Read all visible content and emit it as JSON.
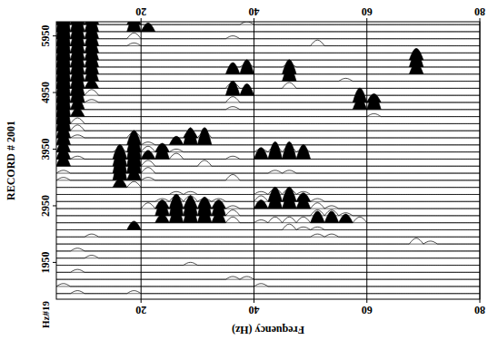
{
  "chart_data": {
    "type": "wiggle",
    "x_label": "Frequency (Hz)",
    "y_label": "RECORD # 2001",
    "annotations": [
      "Hz#19"
    ],
    "color": "#000000",
    "grid": true,
    "xlim": [
      5,
      80
    ],
    "ylim": [
      1300,
      6200
    ],
    "xticks": [
      20,
      40,
      60,
      80
    ],
    "yticks": [
      1950,
      2950,
      3950,
      4950,
      5950
    ],
    "x": [
      6.25,
      8.75,
      11.25,
      13.75,
      16.25,
      18.75,
      21.25,
      23.75,
      26.25,
      28.75,
      31.25,
      33.75,
      36.25,
      38.75,
      41.25,
      43.75,
      46.25,
      48.75,
      51.25,
      53.75,
      56.25,
      58.75,
      61.25,
      63.75,
      66.25,
      68.75,
      71.25,
      73.75,
      76.25,
      78.75
    ],
    "y": [
      1400,
      1525,
      1650,
      1775,
      1900,
      2025,
      2150,
      2275,
      2400,
      2525,
      2650,
      2775,
      2900,
      3025,
      3150,
      3275,
      3400,
      3525,
      3650,
      3775,
      3900,
      4025,
      4150,
      4275,
      4400,
      4525,
      4650,
      4775,
      4900,
      5025,
      5150,
      5275,
      5400,
      5525,
      5650,
      5775,
      5900,
      6025,
      6150
    ],
    "cells": [
      [
        0,
        1,
        0,
        0,
        0,
        1,
        0,
        0,
        0,
        0,
        0,
        0,
        0,
        0,
        0,
        0,
        0,
        0,
        0,
        0,
        0,
        0,
        0,
        0,
        0,
        0,
        0,
        0,
        0,
        0
      ],
      [
        1,
        0,
        0,
        0,
        0,
        0,
        0,
        0,
        0,
        0,
        0,
        0,
        0,
        0,
        1,
        0,
        0,
        0,
        0,
        0,
        0,
        0,
        0,
        0,
        0,
        0,
        0,
        0,
        0,
        0
      ],
      [
        0,
        0,
        0,
        0,
        0,
        0,
        0,
        0,
        0,
        0,
        0,
        0,
        1,
        1,
        0,
        0,
        0,
        0,
        0,
        0,
        0,
        0,
        0,
        0,
        0,
        0,
        0,
        0,
        0,
        0
      ],
      [
        0,
        1,
        0,
        0,
        0,
        0,
        0,
        0,
        0,
        0,
        0,
        0,
        0,
        0,
        0,
        0,
        0,
        0,
        0,
        0,
        0,
        0,
        0,
        0,
        0,
        0,
        0,
        0,
        0,
        0
      ],
      [
        0,
        0,
        0,
        0,
        0,
        0,
        0,
        0,
        0,
        1,
        0,
        0,
        0,
        0,
        0,
        0,
        0,
        0,
        0,
        0,
        0,
        0,
        0,
        0,
        0,
        0,
        0,
        0,
        0,
        0
      ],
      [
        0,
        0,
        1,
        0,
        0,
        0,
        0,
        0,
        0,
        0,
        0,
        0,
        0,
        0,
        0,
        0,
        0,
        0,
        0,
        0,
        0,
        0,
        0,
        0,
        0,
        0,
        0,
        0,
        0,
        0
      ],
      [
        0,
        1,
        0,
        0,
        0,
        0,
        0,
        0,
        0,
        0,
        0,
        0,
        0,
        0,
        0,
        0,
        0,
        0,
        0,
        0,
        0,
        0,
        0,
        0,
        0,
        0,
        0,
        0,
        0,
        0
      ],
      [
        0,
        0,
        0,
        0,
        0,
        0,
        0,
        0,
        0,
        0,
        0,
        0,
        0,
        0,
        0,
        0,
        0,
        0,
        0,
        0,
        0,
        0,
        0,
        0,
        0,
        2,
        1,
        0,
        0,
        0
      ],
      [
        0,
        0,
        1,
        0,
        0,
        0,
        0,
        0,
        0,
        0,
        0,
        0,
        0,
        0,
        0,
        0,
        0,
        0,
        1,
        1,
        0,
        0,
        0,
        0,
        0,
        0,
        0,
        0,
        0,
        0
      ],
      [
        0,
        0,
        0,
        0,
        0,
        3,
        0,
        0,
        0,
        0,
        0,
        0,
        0,
        0,
        0,
        0,
        2,
        1,
        1,
        0,
        0,
        0,
        0,
        0,
        0,
        0,
        0,
        0,
        0,
        0
      ],
      [
        0,
        0,
        0,
        0,
        0,
        0,
        0,
        3,
        5,
        6,
        5,
        4,
        2,
        0,
        1,
        2,
        2,
        2,
        4,
        4,
        3,
        2,
        0,
        0,
        0,
        0,
        0,
        0,
        0,
        0
      ],
      [
        0,
        0,
        0,
        0,
        0,
        0,
        0,
        5,
        7,
        7,
        6,
        5,
        2,
        0,
        0,
        0,
        0,
        0,
        2,
        2,
        1,
        0,
        0,
        0,
        0,
        0,
        0,
        0,
        0,
        0
      ],
      [
        0,
        0,
        0,
        0,
        0,
        0,
        2,
        3,
        5,
        4,
        4,
        3,
        1,
        0,
        3,
        5,
        5,
        4,
        2,
        1,
        0,
        0,
        0,
        0,
        0,
        0,
        0,
        0,
        0,
        0
      ],
      [
        0,
        0,
        0,
        0,
        0,
        0,
        0,
        1,
        2,
        2,
        1,
        1,
        0,
        0,
        2,
        5,
        5,
        3,
        1,
        0,
        0,
        0,
        0,
        0,
        0,
        0,
        0,
        0,
        0,
        0
      ],
      [
        0,
        0,
        0,
        0,
        0,
        0,
        0,
        0,
        1,
        1,
        0,
        0,
        0,
        0,
        1,
        2,
        2,
        1,
        0,
        0,
        0,
        0,
        0,
        0,
        0,
        0,
        0,
        0,
        0,
        0
      ],
      [
        0,
        0,
        0,
        0,
        3,
        2,
        0,
        0,
        0,
        0,
        0,
        0,
        0,
        0,
        0,
        0,
        0,
        0,
        0,
        0,
        0,
        0,
        0,
        0,
        0,
        0,
        0,
        0,
        0,
        0
      ],
      [
        1,
        0,
        0,
        0,
        7,
        4,
        1,
        0,
        0,
        0,
        0,
        0,
        2,
        0,
        0,
        0,
        0,
        0,
        0,
        0,
        0,
        0,
        0,
        0,
        0,
        0,
        0,
        0,
        0,
        0
      ],
      [
        1,
        0,
        0,
        0,
        7,
        8,
        2,
        0,
        0,
        0,
        0,
        0,
        0,
        0,
        0,
        1,
        1,
        0,
        0,
        0,
        0,
        0,
        0,
        0,
        0,
        0,
        0,
        0,
        0,
        0
      ],
      [
        4,
        0,
        0,
        0,
        6,
        8,
        2,
        0,
        0,
        0,
        2,
        0,
        0,
        0,
        0,
        0,
        0,
        0,
        0,
        0,
        0,
        0,
        0,
        0,
        0,
        0,
        0,
        0,
        0,
        0
      ],
      [
        4,
        1,
        0,
        0,
        5,
        8,
        3,
        5,
        2,
        0,
        0,
        0,
        1,
        0,
        4,
        6,
        6,
        5,
        0,
        0,
        0,
        0,
        0,
        0,
        0,
        0,
        0,
        0,
        0,
        0
      ],
      [
        4,
        0,
        0,
        0,
        1,
        6,
        2,
        3,
        1,
        0,
        0,
        0,
        0,
        0,
        1,
        2,
        2,
        1,
        0,
        0,
        0,
        0,
        0,
        0,
        0,
        0,
        0,
        0,
        0,
        0
      ],
      [
        5,
        0,
        0,
        0,
        0,
        5,
        1,
        0,
        3,
        6,
        6,
        0,
        0,
        0,
        0,
        0,
        0,
        0,
        0,
        0,
        0,
        0,
        0,
        0,
        0,
        0,
        0,
        0,
        0,
        0
      ],
      [
        5,
        1,
        0,
        0,
        0,
        2,
        0,
        0,
        0,
        3,
        2,
        0,
        0,
        0,
        0,
        0,
        0,
        0,
        0,
        0,
        0,
        0,
        0,
        0,
        0,
        0,
        0,
        0,
        0,
        0
      ],
      [
        8,
        2,
        0,
        0,
        0,
        0,
        0,
        0,
        0,
        0,
        0,
        0,
        0,
        0,
        0,
        0,
        0,
        0,
        0,
        0,
        0,
        0,
        0,
        0,
        0,
        0,
        0,
        0,
        0,
        0
      ],
      [
        9,
        2,
        0,
        0,
        0,
        0,
        0,
        0,
        0,
        0,
        0,
        0,
        0,
        0,
        0,
        0,
        0,
        0,
        0,
        0,
        0,
        0,
        0,
        0,
        0,
        0,
        0,
        0,
        0,
        0
      ],
      [
        9,
        3,
        0,
        0,
        0,
        0,
        0,
        0,
        0,
        0,
        0,
        0,
        0,
        0,
        0,
        0,
        0,
        0,
        0,
        0,
        0,
        0,
        1,
        0,
        0,
        0,
        0,
        0,
        0,
        0
      ],
      [
        9,
        4,
        0,
        0,
        0,
        0,
        0,
        0,
        0,
        0,
        0,
        0,
        1,
        0,
        0,
        0,
        0,
        0,
        0,
        0,
        0,
        4,
        5,
        0,
        0,
        0,
        0,
        0,
        0,
        0
      ],
      [
        9,
        6,
        1,
        0,
        0,
        0,
        0,
        0,
        0,
        0,
        0,
        0,
        2,
        0,
        0,
        0,
        0,
        0,
        0,
        0,
        0,
        5,
        3,
        0,
        0,
        0,
        0,
        0,
        0,
        0
      ],
      [
        9,
        6,
        2,
        0,
        0,
        0,
        0,
        0,
        0,
        0,
        0,
        0,
        5,
        4,
        0,
        0,
        0,
        0,
        0,
        0,
        0,
        0,
        0,
        0,
        0,
        0,
        0,
        0,
        0,
        0
      ],
      [
        9,
        6,
        3,
        0,
        0,
        0,
        0,
        0,
        0,
        0,
        0,
        0,
        2,
        0,
        0,
        0,
        2,
        0,
        0,
        0,
        0,
        0,
        0,
        0,
        0,
        0,
        0,
        0,
        0,
        0
      ],
      [
        9,
        6,
        5,
        0,
        0,
        0,
        0,
        0,
        0,
        0,
        0,
        0,
        0,
        0,
        0,
        0,
        5,
        0,
        0,
        0,
        1,
        0,
        0,
        0,
        0,
        0,
        0,
        0,
        0,
        0
      ],
      [
        9,
        6,
        5,
        0,
        0,
        0,
        0,
        0,
        0,
        0,
        0,
        0,
        4,
        5,
        0,
        0,
        5,
        0,
        0,
        0,
        0,
        0,
        0,
        0,
        0,
        4,
        0,
        0,
        0,
        0
      ],
      [
        9,
        6,
        5,
        0,
        0,
        0,
        0,
        0,
        0,
        0,
        0,
        0,
        0,
        1,
        0,
        0,
        1,
        0,
        0,
        0,
        0,
        0,
        0,
        0,
        0,
        5,
        0,
        0,
        0,
        0
      ],
      [
        9,
        6,
        5,
        0,
        0,
        0,
        0,
        0,
        0,
        0,
        0,
        0,
        0,
        0,
        0,
        0,
        0,
        0,
        0,
        0,
        0,
        0,
        0,
        0,
        0,
        4,
        0,
        0,
        0,
        0
      ],
      [
        9,
        6,
        5,
        0,
        0,
        0,
        0,
        0,
        0,
        0,
        0,
        0,
        0,
        0,
        0,
        0,
        0,
        0,
        0,
        0,
        0,
        0,
        0,
        0,
        0,
        0,
        0,
        0,
        0,
        0
      ],
      [
        9,
        6,
        5,
        0,
        0,
        1,
        0,
        0,
        0,
        0,
        0,
        0,
        0,
        0,
        0,
        0,
        0,
        0,
        2,
        0,
        0,
        0,
        0,
        0,
        0,
        0,
        0,
        0,
        0,
        0
      ],
      [
        9,
        6,
        5,
        0,
        0,
        2,
        0,
        0,
        0,
        0,
        0,
        0,
        1,
        0,
        0,
        0,
        0,
        0,
        0,
        0,
        0,
        0,
        0,
        0,
        0,
        0,
        0,
        0,
        0,
        0
      ],
      [
        9,
        6,
        5,
        0,
        0,
        5,
        3,
        0,
        0,
        0,
        0,
        0,
        0,
        0,
        0,
        0,
        0,
        0,
        0,
        0,
        0,
        0,
        0,
        0,
        0,
        0,
        0,
        0,
        0,
        0
      ],
      [
        9,
        6,
        5,
        0,
        0,
        3,
        0,
        0,
        0,
        0,
        0,
        0,
        0,
        1,
        0,
        0,
        0,
        0,
        0,
        0,
        0,
        0,
        0,
        0,
        0,
        0,
        0,
        0,
        0,
        0
      ]
    ]
  }
}
